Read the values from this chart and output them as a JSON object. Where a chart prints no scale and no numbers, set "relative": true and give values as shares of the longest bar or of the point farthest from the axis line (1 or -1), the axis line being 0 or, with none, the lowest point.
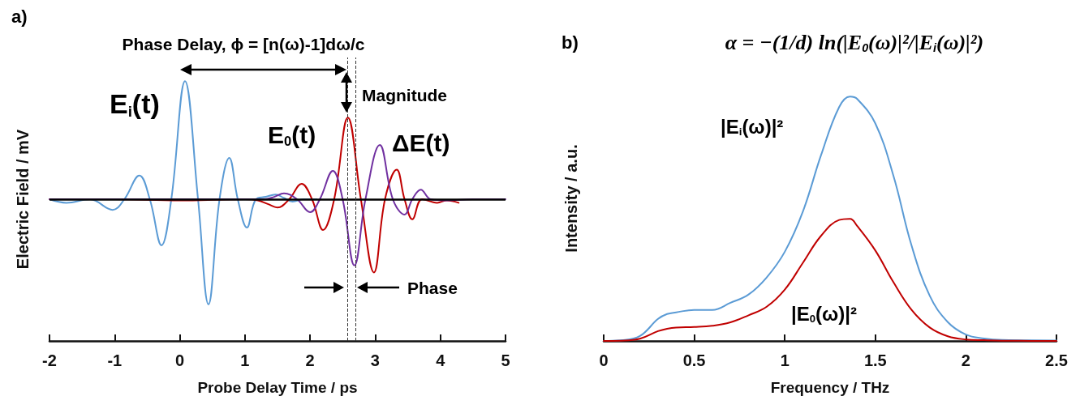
{
  "chart_data": [
    {
      "type": "line",
      "relative": true,
      "xlabel": "Probe Delay Time / ps",
      "ylabel": "Electric Field / mV",
      "xlim": [
        -2,
        5
      ],
      "xticks": [
        -2,
        -1,
        0,
        1,
        2,
        3,
        4,
        5
      ],
      "legend": false,
      "grid": false,
      "marker": "none",
      "line_style": "solid",
      "annotations": [
        "a)",
        "Phase Delay, ϕ = [n(ω)-1]dω/c",
        "Magnitude",
        "Phase"
      ],
      "ref_lines": [
        {
          "axis": "y",
          "value": 0,
          "color": "#000000",
          "line_style": "solid"
        },
        {
          "axis": "x",
          "value": 2.58,
          "color": "#333333",
          "line_style": "dashed"
        },
        {
          "axis": "x",
          "value": 2.7,
          "color": "#333333",
          "line_style": "dashed"
        }
      ],
      "series": [
        {
          "name": "E$_{i}$(t)",
          "color": "#5b9bd5",
          "x": [
            -2,
            -1.74,
            -1.38,
            -1.03,
            -0.85,
            -0.62,
            -0.46,
            -0.28,
            -0.13,
            0.08,
            0.28,
            0.44,
            0.61,
            0.76,
            0.89,
            1.03,
            1.17,
            1.32,
            1.47,
            1.6,
            1.73,
            1.9,
            2.1
          ],
          "values": [
            0,
            -0.03,
            0,
            -0.09,
            0,
            0.2,
            0,
            -0.39,
            0,
            1,
            0,
            -0.89,
            0,
            0.35,
            0,
            -0.24,
            0,
            0.02,
            0.04,
            0.01,
            -0.02,
            0,
            0
          ]
        },
        {
          "name": "E$_{0}$(t)",
          "color": "#c00000",
          "x": [
            -2,
            -1,
            0,
            1,
            1.2,
            1.35,
            1.5,
            1.68,
            1.87,
            2.03,
            2.2,
            2.37,
            2.58,
            2.78,
            2.98,
            3.15,
            3.33,
            3.45,
            3.57,
            3.72,
            3.95,
            4.1,
            4.28
          ],
          "values": [
            0,
            0,
            -0.01,
            0,
            -0.01,
            -0.04,
            -0.07,
            0,
            0.13,
            0,
            -0.26,
            0,
            0.69,
            0,
            -0.62,
            0,
            0.25,
            0,
            -0.17,
            0,
            -0.03,
            -0.01,
            -0.03
          ],
          "line_style": "solid"
        },
        {
          "name": "ΔE(t)",
          "color": "#7030a0",
          "x": [
            -2,
            -1,
            0,
            1,
            1.3,
            1.45,
            1.6,
            1.8,
            2,
            2.15,
            2.35,
            2.5,
            2.68,
            2.85,
            3.07,
            3.27,
            3.45,
            3.57,
            3.7,
            3.85,
            4.1,
            4.5,
            5
          ],
          "values": [
            0,
            0,
            0,
            0,
            0,
            0.02,
            0.05,
            0,
            -0.11,
            0,
            0.24,
            0,
            -0.56,
            0,
            0.46,
            0,
            -0.13,
            0,
            0.08,
            0,
            -0.01,
            0,
            0
          ]
        }
      ]
    },
    {
      "type": "line",
      "relative": true,
      "xlabel": "Frequency / THz",
      "ylabel": "Intensity / a.u.",
      "xlim": [
        0,
        2.5
      ],
      "xticks": [
        0,
        0.5,
        1,
        1.5,
        2,
        2.5
      ],
      "legend": false,
      "grid": false,
      "marker": "none",
      "line_style": "solid",
      "annotations": [
        "b)",
        "α = −(1/d) ln(|E$_{0}$(ω)|²/|E$_{i}$(ω)|²)"
      ],
      "x": [
        0,
        0.1,
        0.2,
        0.3,
        0.35,
        0.4,
        0.5,
        0.6,
        0.7,
        0.8,
        0.9,
        1,
        1.1,
        1.2,
        1.3,
        1.36,
        1.4,
        1.5,
        1.6,
        1.7,
        1.8,
        1.9,
        2,
        2.1,
        2.2,
        2.5
      ],
      "series": [
        {
          "name": "|E$_{i}$(ω)|²",
          "color": "#5b9bd5",
          "values": [
            0,
            0.003,
            0.02,
            0.09,
            0.11,
            0.117,
            0.127,
            0.127,
            0.156,
            0.19,
            0.26,
            0.365,
            0.53,
            0.76,
            0.957,
            1,
            0.99,
            0.89,
            0.675,
            0.39,
            0.185,
            0.077,
            0.026,
            0.01,
            0.004,
            0.002
          ]
        },
        {
          "name": "|E$_{0}$(ω)|²",
          "color": "#c00000",
          "values": [
            0,
            0.001,
            0.009,
            0.04,
            0.05,
            0.055,
            0.057,
            0.062,
            0.076,
            0.105,
            0.14,
            0.21,
            0.32,
            0.43,
            0.495,
            0.5,
            0.47,
            0.37,
            0.24,
            0.127,
            0.055,
            0.019,
            0.006,
            0.003,
            0.001,
            0
          ]
        }
      ]
    }
  ]
}
